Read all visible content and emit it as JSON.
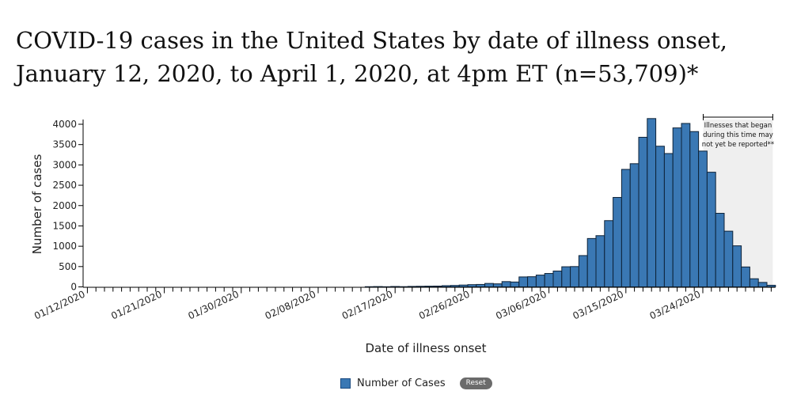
{
  "page": {
    "title": "COVID-19 cases in the United States by date of illness onset, January 12, 2020, to April 1, 2020, at 4pm ET (n=53,709)*"
  },
  "legend": {
    "series_label": "Number of Cases",
    "reset_label": "Reset"
  },
  "colors": {
    "bar": "#3a78b4",
    "bar_stroke": "#0d2238",
    "shade": "#efefef"
  },
  "chart_data": {
    "type": "bar",
    "xlabel": "Date of illness onset",
    "ylabel": "Number of cases",
    "ylim": [
      0,
      4000
    ],
    "yticks": [
      0,
      500,
      1000,
      1500,
      2000,
      2500,
      3000,
      3500,
      4000
    ],
    "x_start": "01/12/2020",
    "x_end": "04/01/2020",
    "x_tick_labels": [
      "01/12/2020",
      "01/21/2020",
      "01/30/2020",
      "02/08/2020",
      "02/17/2020",
      "02/26/2020",
      "03/06/2020",
      "03/15/2020",
      "03/24/2020"
    ],
    "annotation": {
      "text": [
        "Illnesses that began",
        "during this time may",
        "not yet be reported**"
      ],
      "start": "03/24/2020",
      "end": "04/01/2020"
    },
    "series": [
      {
        "name": "Number of Cases",
        "points": [
          {
            "date": "02/14/2020",
            "value": 5
          },
          {
            "date": "02/15/2020",
            "value": 8
          },
          {
            "date": "02/16/2020",
            "value": 4
          },
          {
            "date": "02/17/2020",
            "value": 10
          },
          {
            "date": "02/18/2020",
            "value": 6
          },
          {
            "date": "02/19/2020",
            "value": 12
          },
          {
            "date": "02/20/2020",
            "value": 15
          },
          {
            "date": "02/21/2020",
            "value": 18
          },
          {
            "date": "02/22/2020",
            "value": 20
          },
          {
            "date": "02/23/2020",
            "value": 30
          },
          {
            "date": "02/24/2020",
            "value": 35
          },
          {
            "date": "02/25/2020",
            "value": 45
          },
          {
            "date": "02/26/2020",
            "value": 55
          },
          {
            "date": "02/27/2020",
            "value": 60
          },
          {
            "date": "02/28/2020",
            "value": 85
          },
          {
            "date": "02/29/2020",
            "value": 75
          },
          {
            "date": "03/01/2020",
            "value": 130
          },
          {
            "date": "03/02/2020",
            "value": 120
          },
          {
            "date": "03/03/2020",
            "value": 245
          },
          {
            "date": "03/04/2020",
            "value": 250
          },
          {
            "date": "03/05/2020",
            "value": 290
          },
          {
            "date": "03/06/2020",
            "value": 330
          },
          {
            "date": "03/07/2020",
            "value": 390
          },
          {
            "date": "03/08/2020",
            "value": 495
          },
          {
            "date": "03/09/2020",
            "value": 500
          },
          {
            "date": "03/10/2020",
            "value": 770
          },
          {
            "date": "03/11/2020",
            "value": 1190
          },
          {
            "date": "03/12/2020",
            "value": 1260
          },
          {
            "date": "03/13/2020",
            "value": 1630
          },
          {
            "date": "03/14/2020",
            "value": 2200
          },
          {
            "date": "03/15/2020",
            "value": 2890
          },
          {
            "date": "03/16/2020",
            "value": 3030
          },
          {
            "date": "03/17/2020",
            "value": 3680
          },
          {
            "date": "03/18/2020",
            "value": 4140
          },
          {
            "date": "03/19/2020",
            "value": 3460
          },
          {
            "date": "03/20/2020",
            "value": 3280
          },
          {
            "date": "03/21/2020",
            "value": 3910
          },
          {
            "date": "03/22/2020",
            "value": 4020
          },
          {
            "date": "03/23/2020",
            "value": 3820
          },
          {
            "date": "03/24/2020",
            "value": 3340
          },
          {
            "date": "03/25/2020",
            "value": 2820
          },
          {
            "date": "03/26/2020",
            "value": 1810
          },
          {
            "date": "03/27/2020",
            "value": 1370
          },
          {
            "date": "03/28/2020",
            "value": 1010
          },
          {
            "date": "03/29/2020",
            "value": 490
          },
          {
            "date": "03/30/2020",
            "value": 200
          },
          {
            "date": "03/31/2020",
            "value": 110
          },
          {
            "date": "04/01/2020",
            "value": 40
          }
        ]
      }
    ]
  }
}
